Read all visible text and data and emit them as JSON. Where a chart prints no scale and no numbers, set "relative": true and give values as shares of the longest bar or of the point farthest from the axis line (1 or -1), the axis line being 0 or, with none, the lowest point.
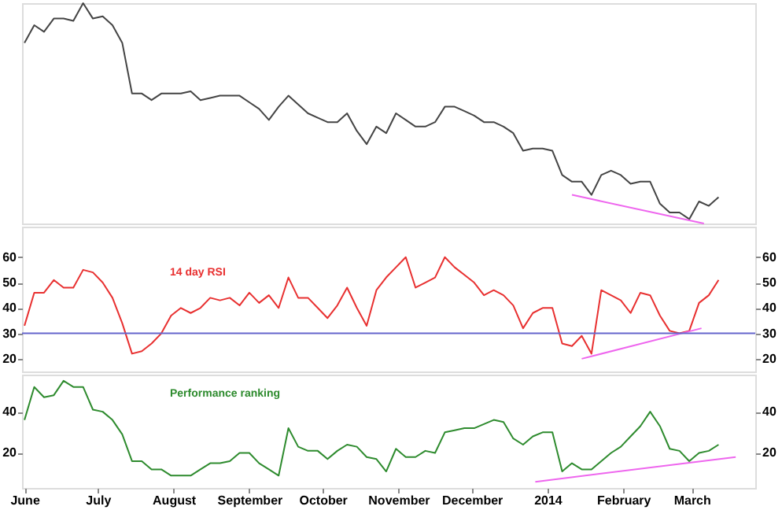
{
  "chart_data": [
    {
      "type": "line",
      "relative": true,
      "tick_labels": false,
      "xlim": [
        "2013-05-31",
        "2014-03-27"
      ],
      "xticks": [
        {
          "value": "2013-06-01",
          "label": null
        },
        {
          "value": "2013-07-01",
          "label": null
        },
        {
          "value": "2013-08-01",
          "label": null
        },
        {
          "value": "2013-09-01",
          "label": null
        },
        {
          "value": "2013-10-01",
          "label": null
        },
        {
          "value": "2013-11-01",
          "label": null
        },
        {
          "value": "2013-12-01",
          "label": null
        },
        {
          "value": "2014-01-01",
          "label": null
        },
        {
          "value": "2014-02-01",
          "label": null
        },
        {
          "value": "2014-03-01",
          "label": null
        }
      ],
      "x": [
        "2013-06-01",
        "2013-06-05",
        "2013-06-09",
        "2013-06-13",
        "2013-06-17",
        "2013-06-21",
        "2013-06-25",
        "2013-06-29",
        "2013-07-03",
        "2013-07-07",
        "2013-07-11",
        "2013-07-15",
        "2013-07-19",
        "2013-07-23",
        "2013-07-27",
        "2013-07-31",
        "2013-08-04",
        "2013-08-08",
        "2013-08-12",
        "2013-08-16",
        "2013-08-20",
        "2013-08-24",
        "2013-08-28",
        "2013-09-01",
        "2013-09-05",
        "2013-09-09",
        "2013-09-13",
        "2013-09-17",
        "2013-09-21",
        "2013-09-25",
        "2013-09-29",
        "2013-10-03",
        "2013-10-07",
        "2013-10-11",
        "2013-10-15",
        "2013-10-19",
        "2013-10-23",
        "2013-10-27",
        "2013-10-31",
        "2013-11-04",
        "2013-11-08",
        "2013-11-12",
        "2013-11-16",
        "2013-11-20",
        "2013-11-24",
        "2013-11-28",
        "2013-12-02",
        "2013-12-06",
        "2013-12-10",
        "2013-12-14",
        "2013-12-18",
        "2013-12-22",
        "2013-12-26",
        "2013-12-30",
        "2014-01-03",
        "2014-01-07",
        "2014-01-11",
        "2014-01-15",
        "2014-01-19",
        "2014-01-23",
        "2014-01-27",
        "2014-01-31",
        "2014-02-04",
        "2014-02-08",
        "2014-02-12",
        "2014-02-16",
        "2014-02-20",
        "2014-02-24",
        "2014-02-28",
        "2014-03-04",
        "2014-03-08",
        "2014-03-12"
      ],
      "series": [
        {
          "color": "#444444",
          "values": [
            0.82,
            0.9,
            0.87,
            0.93,
            0.93,
            0.92,
            1.0,
            0.93,
            0.94,
            0.9,
            0.82,
            0.59,
            0.59,
            0.56,
            0.59,
            0.59,
            0.59,
            0.6,
            0.56,
            0.57,
            0.58,
            0.58,
            0.58,
            0.55,
            0.52,
            0.47,
            0.53,
            0.58,
            0.54,
            0.5,
            0.48,
            0.46,
            0.46,
            0.5,
            0.42,
            0.36,
            0.44,
            0.41,
            0.5,
            0.47,
            0.44,
            0.44,
            0.46,
            0.53,
            0.53,
            0.51,
            0.49,
            0.46,
            0.46,
            0.44,
            0.41,
            0.33,
            0.34,
            0.34,
            0.33,
            0.22,
            0.19,
            0.19,
            0.13,
            0.22,
            0.24,
            0.22,
            0.18,
            0.19,
            0.19,
            0.09,
            0.05,
            0.05,
            0.02,
            0.1,
            0.08,
            0.12
          ]
        },
        {
          "type": "line",
          "color": "#ee66ee",
          "x": [
            "2014-01-11",
            "2014-03-06"
          ],
          "values": [
            0.13,
            0.0
          ]
        }
      ]
    },
    {
      "type": "line",
      "tick_labels": "y",
      "xlim": [
        "2013-05-31",
        "2014-03-27"
      ],
      "xticks": [
        {
          "value": "2013-06-01",
          "label": null
        },
        {
          "value": "2013-07-01",
          "label": null
        },
        {
          "value": "2013-08-01",
          "label": null
        },
        {
          "value": "2013-09-01",
          "label": null
        },
        {
          "value": "2013-10-01",
          "label": null
        },
        {
          "value": "2013-11-01",
          "label": null
        },
        {
          "value": "2013-12-01",
          "label": null
        },
        {
          "value": "2014-01-01",
          "label": null
        },
        {
          "value": "2014-02-01",
          "label": null
        },
        {
          "value": "2014-03-01",
          "label": null
        }
      ],
      "ylim": [
        15,
        72
      ],
      "yticks": [
        20,
        30,
        40,
        50,
        60
      ],
      "y2lim": [
        15,
        72
      ],
      "y2ticks": [
        20,
        30,
        40,
        50,
        60
      ],
      "ref_lines": [
        {
          "axis": "y",
          "value": 30,
          "color": "#6666cc"
        }
      ],
      "x": [
        "2013-06-01",
        "2013-06-05",
        "2013-06-09",
        "2013-06-13",
        "2013-06-17",
        "2013-06-21",
        "2013-06-25",
        "2013-06-29",
        "2013-07-03",
        "2013-07-07",
        "2013-07-11",
        "2013-07-15",
        "2013-07-19",
        "2013-07-23",
        "2013-07-27",
        "2013-07-31",
        "2013-08-04",
        "2013-08-08",
        "2013-08-12",
        "2013-08-16",
        "2013-08-20",
        "2013-08-24",
        "2013-08-28",
        "2013-09-01",
        "2013-09-05",
        "2013-09-09",
        "2013-09-13",
        "2013-09-17",
        "2013-09-21",
        "2013-09-25",
        "2013-09-29",
        "2013-10-03",
        "2013-10-07",
        "2013-10-11",
        "2013-10-15",
        "2013-10-19",
        "2013-10-23",
        "2013-10-27",
        "2013-10-31",
        "2013-11-04",
        "2013-11-08",
        "2013-11-12",
        "2013-11-16",
        "2013-11-20",
        "2013-11-24",
        "2013-11-28",
        "2013-12-02",
        "2013-12-06",
        "2013-12-10",
        "2013-12-14",
        "2013-12-18",
        "2013-12-22",
        "2013-12-26",
        "2013-12-30",
        "2014-01-03",
        "2014-01-07",
        "2014-01-11",
        "2014-01-15",
        "2014-01-19",
        "2014-01-23",
        "2014-01-27",
        "2014-01-31",
        "2014-02-04",
        "2014-02-08",
        "2014-02-12",
        "2014-02-16",
        "2014-02-20",
        "2014-02-24",
        "2014-02-28",
        "2014-03-04",
        "2014-03-08",
        "2014-03-12"
      ],
      "series": [
        {
          "name": "14 day RSI",
          "color": "#e83030",
          "values": [
            33,
            46,
            46,
            51,
            48,
            48,
            55,
            54,
            50,
            44,
            34,
            22,
            23,
            26,
            30,
            37,
            40,
            38,
            40,
            44,
            43,
            44,
            41,
            46,
            42,
            45,
            40,
            52,
            44,
            44,
            40,
            36,
            41,
            48,
            40,
            33,
            47,
            52,
            56,
            60,
            48,
            50,
            52,
            60,
            56,
            53,
            50,
            45,
            47,
            45,
            41,
            32,
            38,
            40,
            40,
            26,
            25,
            29,
            22,
            47,
            45,
            43,
            38,
            46,
            45,
            37,
            31,
            30,
            31,
            42,
            45,
            51
          ]
        },
        {
          "type": "line",
          "color": "#ee66ee",
          "x": [
            "2014-01-15",
            "2014-03-05"
          ],
          "values": [
            20,
            32
          ]
        }
      ]
    },
    {
      "type": "line",
      "xlim": [
        "2013-05-31",
        "2014-03-27"
      ],
      "xticks": [
        {
          "value": "2013-06-01",
          "label": "June"
        },
        {
          "value": "2013-07-01",
          "label": "July"
        },
        {
          "value": "2013-08-01",
          "label": "August"
        },
        {
          "value": "2013-09-01",
          "label": "September"
        },
        {
          "value": "2013-10-01",
          "label": "October"
        },
        {
          "value": "2013-11-01",
          "label": "November"
        },
        {
          "value": "2013-12-01",
          "label": "December"
        },
        {
          "value": "2014-01-01",
          "label": "2014"
        },
        {
          "value": "2014-02-01",
          "label": "February"
        },
        {
          "value": "2014-03-01",
          "label": "March"
        }
      ],
      "ylim": [
        3,
        58
      ],
      "yticks": [
        20,
        40
      ],
      "y2lim": [
        3,
        58
      ],
      "y2ticks": [
        20,
        40
      ],
      "x": [
        "2013-06-01",
        "2013-06-05",
        "2013-06-09",
        "2013-06-13",
        "2013-06-17",
        "2013-06-21",
        "2013-06-25",
        "2013-06-29",
        "2013-07-03",
        "2013-07-07",
        "2013-07-11",
        "2013-07-15",
        "2013-07-19",
        "2013-07-23",
        "2013-07-27",
        "2013-07-31",
        "2013-08-04",
        "2013-08-08",
        "2013-08-12",
        "2013-08-16",
        "2013-08-20",
        "2013-08-24",
        "2013-08-28",
        "2013-09-01",
        "2013-09-05",
        "2013-09-09",
        "2013-09-13",
        "2013-09-17",
        "2013-09-21",
        "2013-09-25",
        "2013-09-29",
        "2013-10-03",
        "2013-10-07",
        "2013-10-11",
        "2013-10-15",
        "2013-10-19",
        "2013-10-23",
        "2013-10-27",
        "2013-10-31",
        "2013-11-04",
        "2013-11-08",
        "2013-11-12",
        "2013-11-16",
        "2013-11-20",
        "2013-11-24",
        "2013-11-28",
        "2013-12-02",
        "2013-12-06",
        "2013-12-10",
        "2013-12-14",
        "2013-12-18",
        "2013-12-22",
        "2013-12-26",
        "2013-12-30",
        "2014-01-03",
        "2014-01-07",
        "2014-01-11",
        "2014-01-15",
        "2014-01-19",
        "2014-01-23",
        "2014-01-27",
        "2014-01-31",
        "2014-02-04",
        "2014-02-08",
        "2014-02-12",
        "2014-02-16",
        "2014-02-20",
        "2014-02-24",
        "2014-02-28",
        "2014-03-04",
        "2014-03-08",
        "2014-03-12"
      ],
      "series": [
        {
          "name": "Performance ranking",
          "color": "#2e8b2e",
          "values": [
            36,
            52,
            47,
            48,
            55,
            52,
            52,
            41,
            40,
            36,
            29,
            16,
            16,
            12,
            12,
            9,
            9,
            9,
            12,
            15,
            15,
            16,
            20,
            20,
            15,
            12,
            9,
            32,
            23,
            21,
            21,
            17,
            21,
            24,
            23,
            18,
            17,
            11,
            22,
            18,
            18,
            21,
            20,
            30,
            31,
            32,
            32,
            34,
            36,
            35,
            27,
            24,
            28,
            30,
            30,
            11,
            15,
            12,
            12,
            16,
            20,
            23,
            28,
            33,
            40,
            33,
            22,
            21,
            16,
            20,
            21,
            24
          ]
        },
        {
          "type": "line",
          "color": "#ee66ee",
          "x": [
            "2013-12-27",
            "2014-03-19"
          ],
          "values": [
            6,
            18
          ]
        }
      ]
    }
  ]
}
